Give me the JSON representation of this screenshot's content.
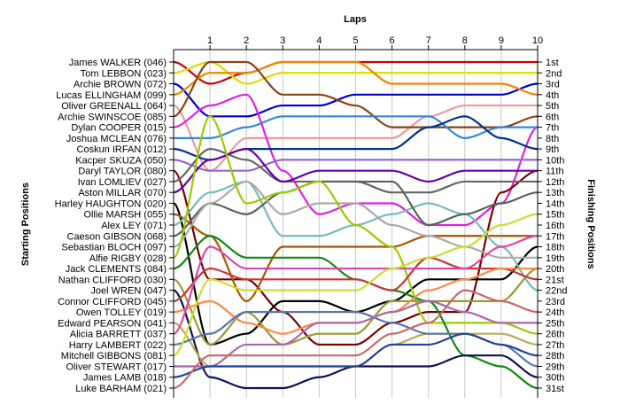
{
  "chart_data": {
    "type": "line",
    "title": "",
    "xlabel": "Laps",
    "ylabel_left": "Starting Positions",
    "ylabel_right": "Finishing Positions",
    "x": [
      0,
      1,
      2,
      3,
      4,
      5,
      6,
      7,
      8,
      9,
      10
    ],
    "x_tick_labels": [
      "1",
      "2",
      "3",
      "4",
      "5",
      "6",
      "7",
      "8",
      "9",
      "10"
    ],
    "y_reversed": true,
    "ylim": [
      1,
      31
    ],
    "grid": "vertical",
    "legend": "none",
    "starting_labels": [
      "James WALKER (046)",
      "Tom LEBBON (023)",
      "Archie BROWN (072)",
      "Lucas ELLINGHAM (099)",
      "Oliver GREENALL (064)",
      "Archie SWINSCOE (085)",
      "Dylan COOPER (015)",
      "Joshua MCLEAN (076)",
      "Coskun IRFAN (012)",
      "Kacper SKUZA (050)",
      "Daryl TAYLOR (080)",
      "Ivan LOMLIEV (027)",
      "Aston MILLAR (070)",
      "Harley HAUGHTON (020)",
      "Ollie MARSH (055)",
      "Alex LEY (071)",
      "Caeson GIBSON (068)",
      "Sebastian BLOCH (097)",
      "Alfie RIGBY (028)",
      "Jack CLEMENTS (084)",
      "Nathan CLIFFORD (030)",
      "Joel WREN (047)",
      "Connor CLIFFORD (045)",
      "Owen TOLLEY (019)",
      "Edward PEARSON (041)",
      "Alicia BARRETT (037)",
      "Harry LAMBERT (022)",
      "Mitchell GIBBONS (081)",
      "Oliver STEWART (017)",
      "James LAMB (018)",
      "Luke BARHAM (021)"
    ],
    "finishing_labels": [
      "1st",
      "2nd",
      "3rd",
      "4th",
      "5th",
      "6th",
      "7th",
      "8th",
      "9th",
      "10th",
      "11th",
      "12th",
      "13th",
      "14th",
      "15th",
      "16th",
      "17th",
      "18th",
      "19th",
      "20th",
      "21st",
      "22nd",
      "23rd",
      "24th",
      "25th",
      "26th",
      "27th",
      "28th",
      "29th",
      "30th",
      "31st"
    ],
    "series": [
      {
        "color": "#cc0000",
        "positions": [
          1,
          3,
          2,
          1,
          1,
          1,
          1,
          1,
          1,
          1,
          1
        ]
      },
      {
        "color": "#dddd00",
        "positions": [
          2,
          1,
          3,
          2,
          2,
          2,
          2,
          2,
          2,
          2,
          2
        ]
      },
      {
        "color": "#0000cc",
        "positions": [
          3,
          6,
          6,
          5,
          5,
          4,
          4,
          4,
          4,
          4,
          3
        ]
      },
      {
        "color": "#ee8800",
        "positions": [
          4,
          2,
          2,
          1,
          1,
          1,
          3,
          3,
          3,
          3,
          4
        ]
      },
      {
        "color": "#ee9999",
        "positions": [
          5,
          11,
          8,
          8,
          8,
          8,
          8,
          6,
          5,
          5,
          5
        ]
      },
      {
        "color": "#884411",
        "positions": [
          6,
          1,
          1,
          4,
          4,
          5,
          7,
          7,
          7,
          7,
          6
        ]
      },
      {
        "color": "#dd22dd",
        "positions": [
          7,
          5,
          4,
          11,
          15,
          14,
          14,
          16,
          16,
          14,
          7
        ]
      },
      {
        "color": "#3388dd",
        "positions": [
          8,
          8,
          7,
          6,
          6,
          6,
          6,
          6,
          8,
          7,
          7
        ]
      },
      {
        "color": "#003388",
        "positions": [
          9,
          10,
          9,
          9,
          9,
          9,
          9,
          7,
          6,
          8,
          9
        ]
      },
      {
        "color": "#9966cc",
        "positions": [
          10,
          11,
          11,
          10,
          10,
          10,
          10,
          10,
          10,
          10,
          10
        ]
      },
      {
        "color": "#770000",
        "positions": [
          11,
          21,
          21,
          24,
          27,
          27,
          25,
          24,
          24,
          13,
          11
        ]
      },
      {
        "color": "#666666",
        "positions": [
          12,
          9,
          10,
          12,
          12,
          12,
          13,
          13,
          12,
          12,
          12
        ]
      },
      {
        "color": "#6600aa",
        "positions": [
          13,
          10,
          9,
          12,
          11,
          11,
          11,
          12,
          11,
          11,
          11
        ]
      },
      {
        "color": "#000000",
        "positions": [
          14,
          27,
          26,
          23,
          23,
          24,
          23,
          21,
          21,
          21,
          18
        ]
      },
      {
        "color": "#aa5500",
        "positions": [
          15,
          17,
          23,
          18,
          18,
          18,
          18,
          17,
          17,
          17,
          17
        ]
      },
      {
        "color": "#77bbbb",
        "positions": [
          16,
          13,
          12,
          17,
          17,
          16,
          15,
          14,
          15,
          18,
          22
        ]
      },
      {
        "color": "#556655",
        "positions": [
          17,
          14,
          15,
          13,
          12,
          12,
          12,
          16,
          15,
          14,
          13
        ]
      },
      {
        "color": "#aaaaaa",
        "positions": [
          18,
          14,
          12,
          15,
          14,
          14,
          16,
          17,
          18,
          19,
          19
        ]
      },
      {
        "color": "#99cc00",
        "positions": [
          19,
          6,
          14,
          13,
          12,
          16,
          18,
          25,
          25,
          25,
          26
        ]
      },
      {
        "color": "#118811",
        "positions": [
          20,
          17,
          19,
          19,
          19,
          21,
          22,
          23,
          28,
          29,
          31
        ]
      },
      {
        "color": "#999933",
        "positions": [
          21,
          27,
          24,
          27,
          26,
          26,
          23,
          23,
          23,
          23,
          20
        ]
      },
      {
        "color": "#111155",
        "positions": [
          22,
          30,
          31,
          31,
          30,
          29,
          29,
          29,
          28,
          28,
          30
        ]
      },
      {
        "color": "#cc3333",
        "positions": [
          23,
          20,
          21,
          21,
          21,
          21,
          22,
          19,
          20,
          20,
          21
        ]
      },
      {
        "color": "#ff8844",
        "positions": [
          24,
          23,
          25,
          26,
          25,
          25,
          24,
          22,
          21,
          20,
          20
        ]
      },
      {
        "color": "#bbaa55",
        "positions": [
          25,
          29,
          29,
          29,
          29,
          29,
          27,
          26,
          26,
          26,
          27
        ]
      },
      {
        "color": "#dd44aa",
        "positions": [
          26,
          18,
          20,
          20,
          20,
          20,
          20,
          20,
          20,
          18,
          17
        ]
      },
      {
        "color": "#5577aa",
        "positions": [
          27,
          26,
          24,
          24,
          24,
          24,
          25,
          26,
          26,
          27,
          29
        ]
      },
      {
        "color": "#ccdd33",
        "positions": [
          28,
          21,
          22,
          22,
          22,
          22,
          20,
          19,
          18,
          16,
          15
        ]
      },
      {
        "color": "#aa66aa",
        "positions": [
          29,
          29,
          27,
          27,
          25,
          25,
          24,
          23,
          24,
          25,
          25
        ]
      },
      {
        "color": "#224499",
        "positions": [
          30,
          29,
          29,
          29,
          29,
          29,
          27,
          27,
          26,
          27,
          28
        ]
      },
      {
        "color": "#cc6666",
        "positions": [
          31,
          28,
          28,
          28,
          28,
          28,
          26,
          25,
          22,
          23,
          24
        ]
      }
    ]
  }
}
